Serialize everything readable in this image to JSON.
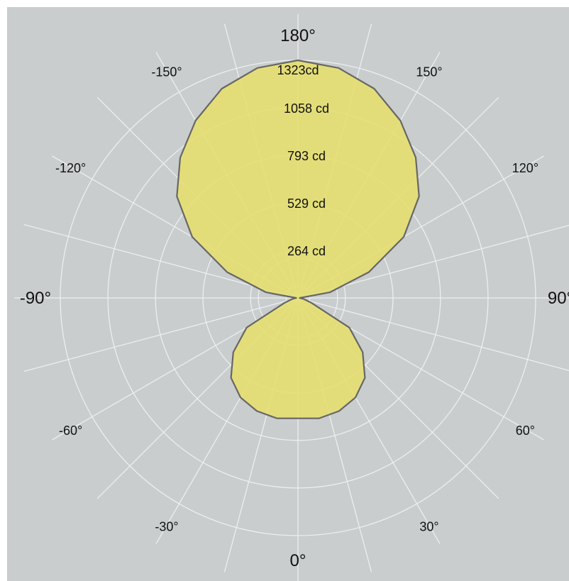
{
  "chart_data": {
    "type": "polar",
    "background_color": "#c9cdcd",
    "grid_color": "#ecefef",
    "fill_color": "#e6df70",
    "outline_color": "#676767",
    "grid": true,
    "angle_labels": [
      {
        "deg": 0,
        "text": "0°"
      },
      {
        "deg": 30,
        "text": "30°"
      },
      {
        "deg": 60,
        "text": "60°"
      },
      {
        "deg": 90,
        "text": "90°"
      },
      {
        "deg": 120,
        "text": "120°"
      },
      {
        "deg": 150,
        "text": "150°"
      },
      {
        "deg": 180,
        "text": "180°"
      },
      {
        "deg": -150,
        "text": "-150°"
      },
      {
        "deg": -120,
        "text": "-120°"
      },
      {
        "deg": -90,
        "text": "-90°"
      },
      {
        "deg": -60,
        "text": "-60°"
      },
      {
        "deg": -30,
        "text": "-30°"
      }
    ],
    "radial_ticks": [
      264,
      529,
      793,
      1058
    ],
    "radial_tick_labels": [
      "264 cd",
      "529 cd",
      "793 cd",
      "1058 cd"
    ],
    "r_max": 1323,
    "r_max_label": "1323cd",
    "series": [
      {
        "angles_deg": [
          -180,
          -170,
          -160,
          -150,
          -140,
          -130,
          -120,
          -110,
          -100,
          -90,
          -80,
          -70,
          -60,
          -50,
          -40,
          -30,
          -20,
          -10,
          0,
          10,
          20,
          30,
          40,
          50,
          60,
          70,
          80,
          90,
          100,
          110,
          120,
          130,
          140,
          150,
          160,
          170,
          180
        ],
        "values": [
          1323,
          1300,
          1240,
          1140,
          1020,
          880,
          680,
          420,
          180,
          10,
          30,
          80,
          330,
          470,
          580,
          640,
          670,
          680,
          670,
          680,
          670,
          640,
          580,
          470,
          330,
          80,
          30,
          10,
          180,
          420,
          680,
          880,
          1020,
          1140,
          1240,
          1300,
          1323
        ]
      }
    ]
  }
}
